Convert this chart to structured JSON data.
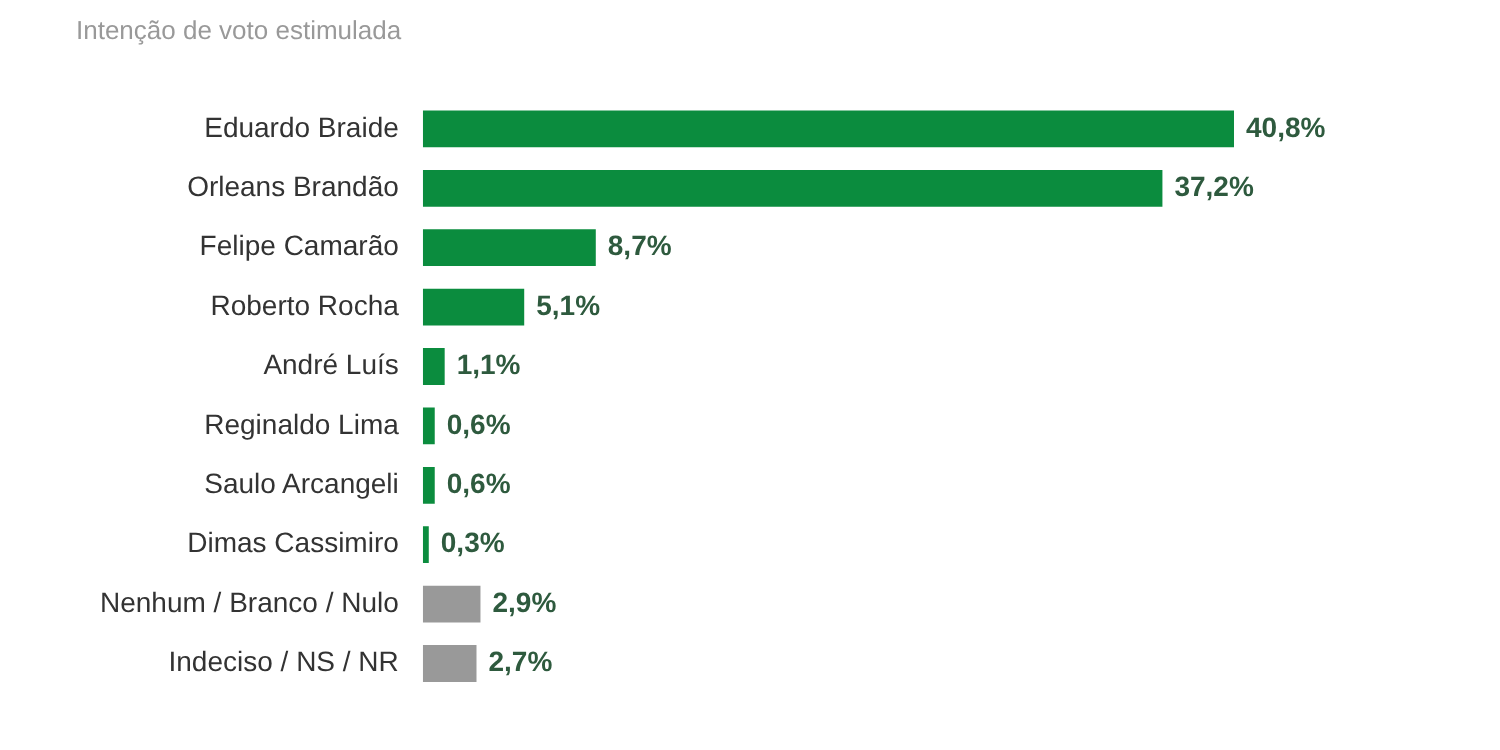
{
  "chart_data": {
    "type": "bar",
    "orientation": "horizontal",
    "subtitle": "Intenção de voto estimulada",
    "categories": [
      "Eduardo Braide",
      "Orleans Brandão",
      "Felipe Camarão",
      "Roberto Rocha",
      "André Luís",
      "Reginaldo Lima",
      "Saulo Arcangeli",
      "Dimas Cassimiro",
      "Nenhum / Branco / Nulo",
      "Indeciso / NS / NR"
    ],
    "values": [
      40.8,
      37.2,
      8.7,
      5.1,
      1.1,
      0.6,
      0.6,
      0.3,
      2.9,
      2.7
    ],
    "value_labels": [
      "40,8%",
      "37,2%",
      "8,7%",
      "5,1%",
      "1,1%",
      "0,6%",
      "0,6%",
      "0,3%",
      "2,9%",
      "2,7%"
    ],
    "colors": [
      "#0b8c3e",
      "#0b8c3e",
      "#0b8c3e",
      "#0b8c3e",
      "#0b8c3e",
      "#0b8c3e",
      "#0b8c3e",
      "#0b8c3e",
      "#999999",
      "#999999"
    ],
    "tick_labels": "y",
    "legend": false
  }
}
